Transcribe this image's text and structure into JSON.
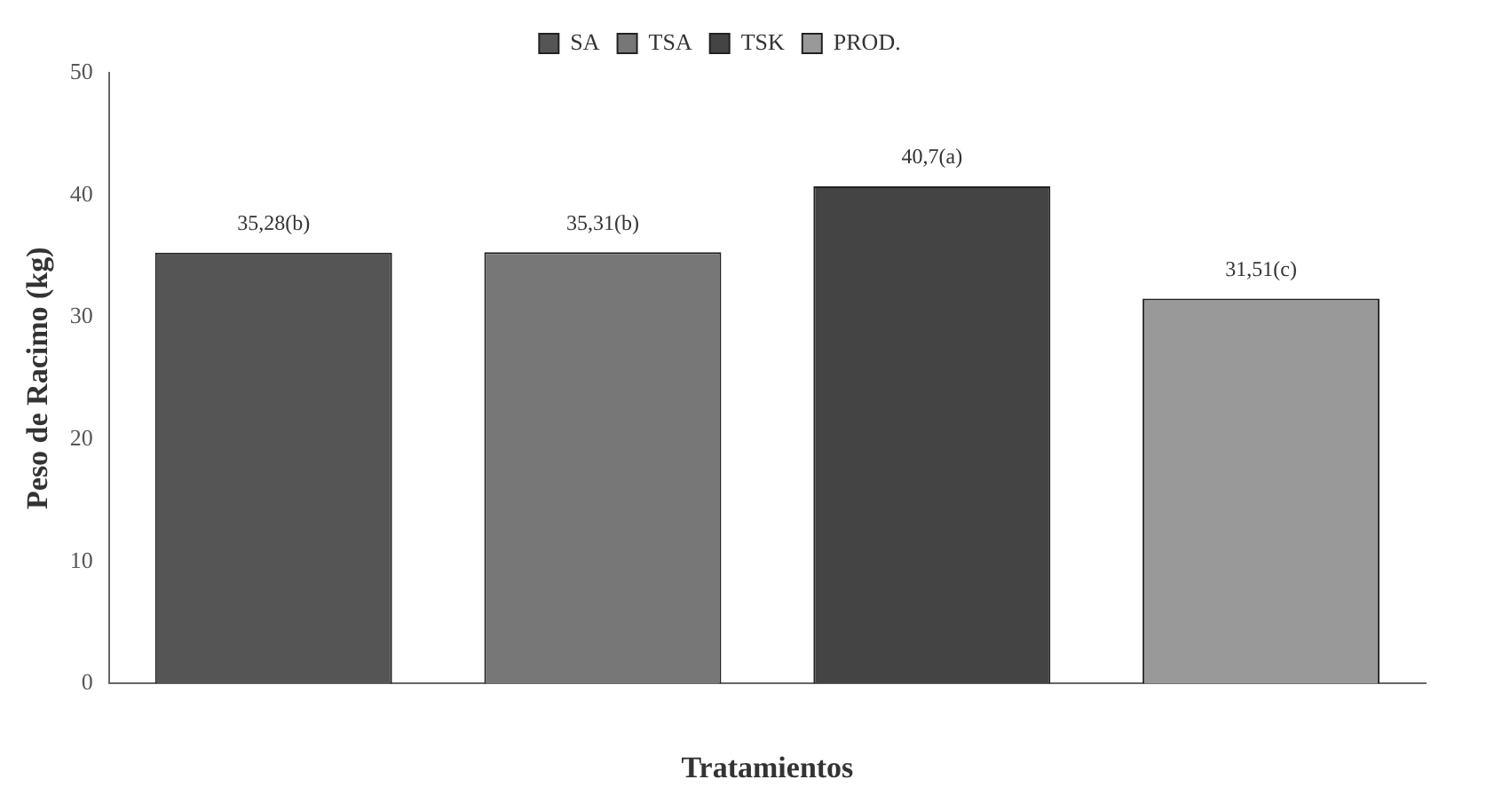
{
  "chart_data": {
    "type": "bar",
    "xlabel": "Tratamientos",
    "ylabel": "Peso de Racimo (kg)",
    "categories": [
      null,
      null,
      null,
      null
    ],
    "series": [
      {
        "name": "SA",
        "color": "#555555",
        "values": [
          35.28,
          null,
          null,
          null
        ],
        "value_labels": [
          "35,28(b)",
          null,
          null,
          null
        ]
      },
      {
        "name": "TSA",
        "color": "#777777",
        "values": [
          null,
          35.31,
          null,
          null
        ],
        "value_labels": [
          null,
          "35,31(b)",
          null,
          null
        ]
      },
      {
        "name": "TSK",
        "color": "#444444",
        "values": [
          null,
          null,
          40.7,
          null
        ],
        "value_labels": [
          null,
          null,
          "40,7(a)",
          null
        ]
      },
      {
        "name": "PROD.",
        "color": "#999999",
        "values": [
          null,
          null,
          null,
          31.51
        ],
        "value_labels": [
          null,
          null,
          null,
          "31,51(c)"
        ]
      }
    ],
    "ylim": [
      0,
      50
    ],
    "yticks": [
      0,
      10,
      20,
      30,
      40,
      50
    ],
    "grid": false,
    "legend": "top"
  }
}
